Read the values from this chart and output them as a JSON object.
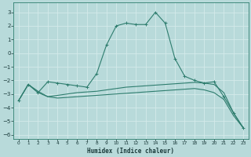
{
  "title": "",
  "xlabel": "Humidex (Indice chaleur)",
  "xlim": [
    -0.5,
    23.5
  ],
  "ylim": [
    -6.3,
    3.7
  ],
  "yticks": [
    3,
    2,
    1,
    0,
    -1,
    -2,
    -3,
    -4,
    -5,
    -6
  ],
  "xticks": [
    0,
    1,
    2,
    3,
    4,
    5,
    6,
    7,
    8,
    9,
    10,
    11,
    12,
    13,
    14,
    15,
    16,
    17,
    18,
    19,
    20,
    21,
    22,
    23
  ],
  "background_color": "#b8dada",
  "grid_color": "#d4eaea",
  "line_color": "#2e7d6e",
  "line1_x": [
    0,
    1,
    2,
    3,
    4,
    5,
    6,
    7,
    8,
    9,
    10,
    11,
    12,
    13,
    14,
    15,
    16,
    17,
    18,
    19,
    20,
    21,
    22,
    23
  ],
  "line1_y": [
    -3.5,
    -2.3,
    -2.9,
    -2.1,
    -2.2,
    -2.3,
    -2.4,
    -2.5,
    -1.5,
    0.6,
    2.0,
    2.2,
    2.1,
    2.1,
    3.0,
    2.2,
    -0.4,
    -1.7,
    -2.0,
    -2.2,
    -2.1,
    -3.2,
    -4.4,
    -5.5
  ],
  "line2_x": [
    0,
    1,
    2,
    3,
    4,
    5,
    6,
    7,
    8,
    9,
    10,
    11,
    12,
    13,
    14,
    15,
    16,
    17,
    18,
    19,
    20,
    21,
    22,
    23
  ],
  "line2_y": [
    -3.5,
    -2.3,
    -2.8,
    -3.2,
    -3.1,
    -3.0,
    -2.9,
    -2.85,
    -2.8,
    -2.7,
    -2.6,
    -2.5,
    -2.45,
    -2.4,
    -2.35,
    -2.3,
    -2.25,
    -2.2,
    -2.15,
    -2.2,
    -2.3,
    -2.9,
    -4.4,
    -5.5
  ],
  "line3_x": [
    0,
    1,
    2,
    3,
    4,
    5,
    6,
    7,
    8,
    9,
    10,
    11,
    12,
    13,
    14,
    15,
    16,
    17,
    18,
    19,
    20,
    21,
    22,
    23
  ],
  "line3_y": [
    -3.5,
    -2.3,
    -2.9,
    -3.2,
    -3.3,
    -3.25,
    -3.2,
    -3.15,
    -3.1,
    -3.05,
    -3.0,
    -2.95,
    -2.9,
    -2.85,
    -2.8,
    -2.75,
    -2.7,
    -2.65,
    -2.6,
    -2.7,
    -2.9,
    -3.4,
    -4.6,
    -5.5
  ]
}
